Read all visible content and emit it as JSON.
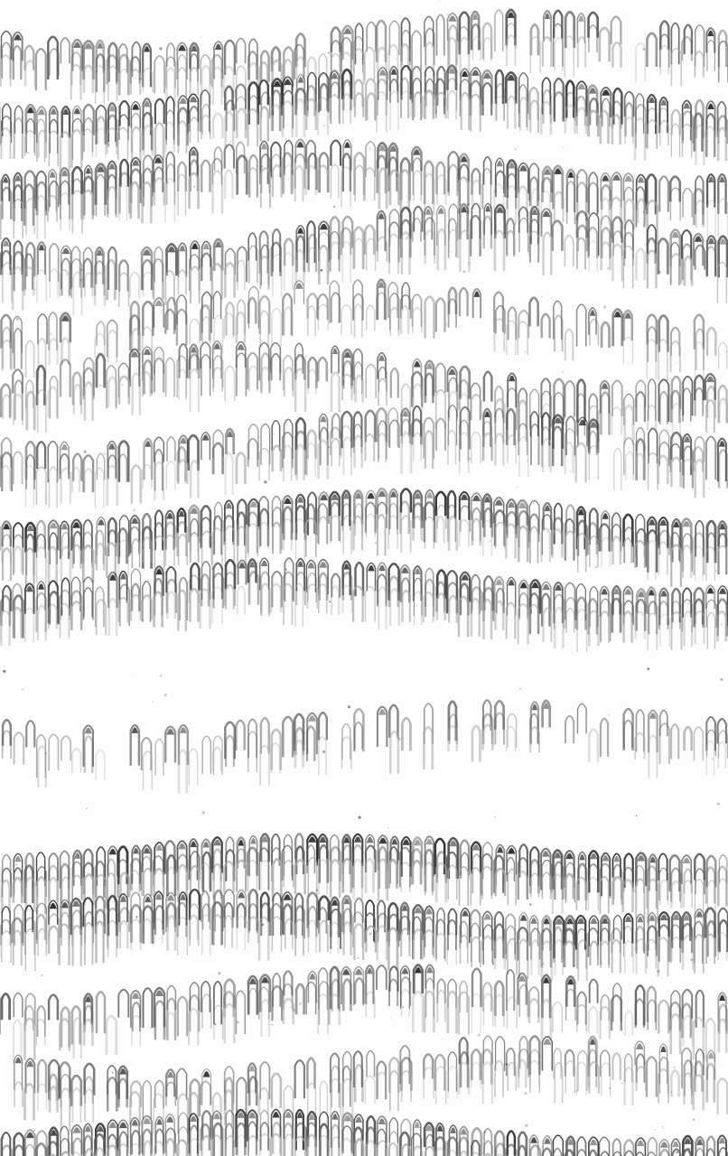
{
  "image": {
    "subject": "marbled-paper-endpaper",
    "colors": {
      "paper": "#fdfdfd",
      "ink_dark": "#1c1c1c",
      "ink_mid": "#5a5a5a",
      "ink_light": "#a9a9a9"
    }
  }
}
